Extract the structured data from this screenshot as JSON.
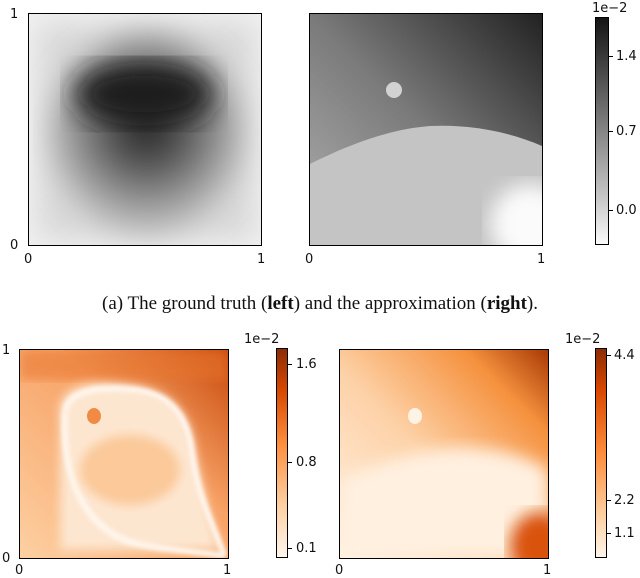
{
  "caption": {
    "prefix": "(a) The ground truth (",
    "left_word": "left",
    "middle": ") and the approximation (",
    "right_word": "right",
    "suffix": ")."
  },
  "panels": {
    "gt": {
      "x_ticks": [
        "0",
        "1"
      ],
      "y_ticks": [
        "0",
        "1"
      ]
    },
    "approx": {
      "x_ticks": [
        "0",
        "1"
      ]
    },
    "err1": {
      "x_ticks": [
        "0",
        "1"
      ],
      "y_ticks": [
        "0",
        "1"
      ]
    },
    "err2": {
      "x_ticks": [
        "0",
        "1"
      ]
    }
  },
  "colorbars": {
    "gray": {
      "exponent": "1e−2",
      "ticks": [
        "1.4",
        "0.7",
        "0.0"
      ],
      "colormap": "gray_r"
    },
    "orange1": {
      "exponent": "1e−2",
      "ticks": [
        "1.6",
        "0.8",
        "0.1"
      ],
      "colormap": "Oranges"
    },
    "orange2": {
      "exponent": "1e−2",
      "ticks": [
        "4.4",
        "2.2",
        "1.1"
      ],
      "colormap": "Oranges"
    }
  },
  "colors": {
    "gray_dark": "#141414",
    "gray_light": "#fafafa",
    "orange_dark": "#8c2d04",
    "orange_light": "#fff5eb"
  }
}
